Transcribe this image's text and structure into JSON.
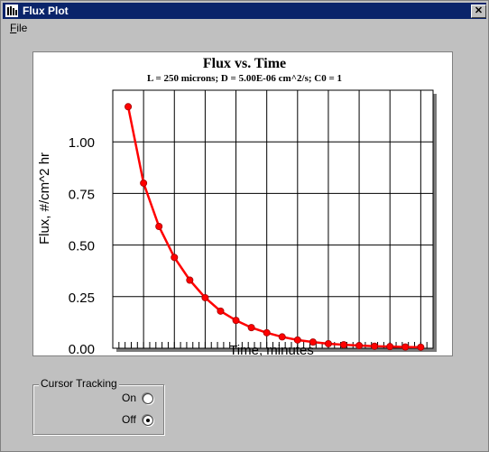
{
  "window": {
    "title": "Flux Plot",
    "close_label": "✕"
  },
  "menu": {
    "file_label_mnemonic": "F",
    "file_label_rest": "ile"
  },
  "chart_data": {
    "type": "line",
    "title": "Flux vs. Time",
    "subtitle": "L = 250 microns; D = 5.00E-06 cm^2/s; C0 = 1",
    "xlabel": "Time, minutes",
    "ylabel": "Flux, #/cm^2 hr",
    "xlim": [
      0.0,
      5.2
    ],
    "ylim": [
      0.0,
      1.25
    ],
    "xticks": [
      "0.5",
      "1.0",
      "1.5",
      "2.0",
      "2.5",
      "3.0",
      "3.5",
      "4.0",
      "4.5",
      "5.0"
    ],
    "xtick_values": [
      0.5,
      1.0,
      1.5,
      2.0,
      2.5,
      3.0,
      3.5,
      4.0,
      4.5,
      5.0
    ],
    "yticks": [
      "0.00",
      "0.25",
      "0.50",
      "0.75",
      "1.00"
    ],
    "ytick_values": [
      0.0,
      0.25,
      0.5,
      0.75,
      1.0
    ],
    "grid": true,
    "series": [
      {
        "color": "#ff0000",
        "x": [
          0.25,
          0.5,
          0.75,
          1.0,
          1.25,
          1.5,
          1.75,
          2.0,
          2.25,
          2.5,
          2.75,
          3.0,
          3.25,
          3.5,
          3.75,
          4.0,
          4.25,
          4.5,
          4.75,
          5.0
        ],
        "y": [
          1.17,
          0.8,
          0.59,
          0.44,
          0.33,
          0.245,
          0.18,
          0.135,
          0.1,
          0.075,
          0.055,
          0.04,
          0.03,
          0.022,
          0.017,
          0.013,
          0.01,
          0.008,
          0.006,
          0.005
        ]
      }
    ]
  },
  "cursor_tracking": {
    "group_label": "Cursor Tracking",
    "on_label": "On",
    "off_label": "Off",
    "selected": "Off"
  }
}
